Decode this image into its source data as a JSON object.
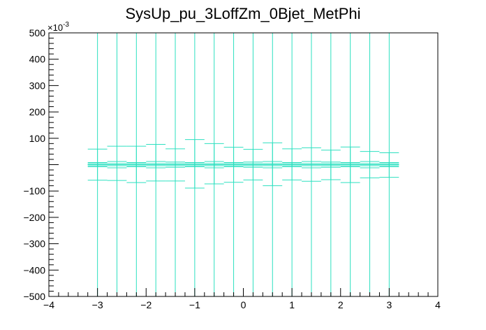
{
  "chart_data": {
    "type": "scatter",
    "title": "SysUp_pu_3LoffZm_0Bjet_MetPhi",
    "xlabel": "",
    "ylabel": "",
    "xlim": [
      -4,
      4
    ],
    "ylim": [
      -500,
      500
    ],
    "y_scale_label": "×10",
    "y_scale_exponent": "-3",
    "x_ticks": [
      -4,
      -3,
      -2,
      -1,
      0,
      1,
      2,
      3,
      4
    ],
    "x_tick_labels": [
      "−4",
      "−3",
      "−2",
      "−1",
      "0",
      "1",
      "2",
      "3",
      "4"
    ],
    "y_ticks": [
      -500,
      -400,
      -300,
      -200,
      -100,
      100,
      200,
      300,
      400,
      500
    ],
    "y_tick_labels": [
      "−500",
      "−400",
      "−300",
      "−200",
      "−100",
      "100",
      "200",
      "300",
      "400",
      "500"
    ],
    "grid": false,
    "legend": "none",
    "color": "#2de0c0",
    "series": [
      {
        "points": [
          {
            "x": -3.0,
            "xlo": -3.2,
            "xhi": -2.8,
            "y": 0,
            "ylo": -500,
            "yhi": 500
          },
          {
            "x": -2.6,
            "xlo": -2.8,
            "xhi": -2.4,
            "y": 0,
            "ylo": -500,
            "yhi": 500
          },
          {
            "x": -2.2,
            "xlo": -2.4,
            "xhi": -2.0,
            "y": 0,
            "ylo": -500,
            "yhi": 500
          },
          {
            "x": -1.8,
            "xlo": -2.0,
            "xhi": -1.6,
            "y": 0,
            "ylo": -500,
            "yhi": 500
          },
          {
            "x": -1.4,
            "xlo": -1.6,
            "xhi": -1.2,
            "y": 0,
            "ylo": -500,
            "yhi": 500
          },
          {
            "x": -1.0,
            "xlo": -1.2,
            "xhi": -0.8,
            "y": 0,
            "ylo": -500,
            "yhi": 500
          },
          {
            "x": -0.6,
            "xlo": -0.8,
            "xhi": -0.4,
            "y": 0,
            "ylo": -500,
            "yhi": 500
          },
          {
            "x": -0.2,
            "xlo": -0.4,
            "xhi": 0.0,
            "y": 0,
            "ylo": -500,
            "yhi": 500
          },
          {
            "x": 0.2,
            "xlo": 0.0,
            "xhi": 0.4,
            "y": 0,
            "ylo": -500,
            "yhi": 500
          },
          {
            "x": 0.6,
            "xlo": 0.4,
            "xhi": 0.8,
            "y": 0,
            "ylo": -500,
            "yhi": 500
          },
          {
            "x": 1.0,
            "xlo": 0.8,
            "xhi": 1.2,
            "y": 0,
            "ylo": -500,
            "yhi": 500
          },
          {
            "x": 1.4,
            "xlo": 1.2,
            "xhi": 1.6,
            "y": 0,
            "ylo": -500,
            "yhi": 500
          },
          {
            "x": 1.8,
            "xlo": 1.6,
            "xhi": 2.0,
            "y": 0,
            "ylo": -500,
            "yhi": 500
          },
          {
            "x": 2.2,
            "xlo": 2.0,
            "xhi": 2.4,
            "y": 0,
            "ylo": -500,
            "yhi": 500
          },
          {
            "x": 2.6,
            "xlo": 2.4,
            "xhi": 2.8,
            "y": 0,
            "ylo": -500,
            "yhi": 500
          },
          {
            "x": 3.0,
            "xlo": 2.8,
            "xhi": 3.2,
            "y": 0,
            "ylo": -500,
            "yhi": 500
          }
        ]
      },
      {
        "points": [
          {
            "xlo": -3.2,
            "xhi": -2.8,
            "y": 0,
            "ylo": -59,
            "yhi": 59
          },
          {
            "xlo": -2.8,
            "xhi": -2.4,
            "y": 0,
            "ylo": -60,
            "yhi": 70
          },
          {
            "xlo": -2.4,
            "xhi": -2.0,
            "y": 0,
            "ylo": -68,
            "yhi": 70
          },
          {
            "xlo": -2.0,
            "xhi": -1.6,
            "y": 0,
            "ylo": -62,
            "yhi": 77
          },
          {
            "xlo": -1.6,
            "xhi": -1.2,
            "y": 0,
            "ylo": -62,
            "yhi": 60
          },
          {
            "xlo": -1.2,
            "xhi": -0.8,
            "y": 0,
            "ylo": -89,
            "yhi": 95
          },
          {
            "xlo": -0.8,
            "xhi": -0.4,
            "y": 0,
            "ylo": -73,
            "yhi": 80
          },
          {
            "xlo": -0.4,
            "xhi": 0.0,
            "y": 0,
            "ylo": -67,
            "yhi": 66
          },
          {
            "xlo": 0.0,
            "xhi": 0.4,
            "y": 0,
            "ylo": -58,
            "yhi": 58
          },
          {
            "xlo": 0.4,
            "xhi": 0.8,
            "y": 0,
            "ylo": -80,
            "yhi": 83
          },
          {
            "xlo": 0.8,
            "xhi": 1.2,
            "y": 0,
            "ylo": -58,
            "yhi": 60
          },
          {
            "xlo": 1.2,
            "xhi": 1.6,
            "y": 0,
            "ylo": -63,
            "yhi": 64
          },
          {
            "xlo": 1.6,
            "xhi": 2.0,
            "y": 0,
            "ylo": -57,
            "yhi": 55
          },
          {
            "xlo": 2.0,
            "xhi": 2.4,
            "y": 0,
            "ylo": -68,
            "yhi": 67
          },
          {
            "xlo": 2.4,
            "xhi": 2.8,
            "y": 0,
            "ylo": -50,
            "yhi": 50
          },
          {
            "xlo": 2.8,
            "xhi": 3.2,
            "y": 0,
            "ylo": -48,
            "yhi": 45
          }
        ]
      },
      {
        "points": [
          {
            "xlo": -3.2,
            "xhi": -2.8,
            "y": 0,
            "ylo": -8,
            "yhi": 8
          },
          {
            "xlo": -2.8,
            "xhi": -2.4,
            "y": 0,
            "ylo": -12,
            "yhi": 12
          },
          {
            "xlo": -2.4,
            "xhi": -2.0,
            "y": 0,
            "ylo": -8,
            "yhi": 8
          },
          {
            "xlo": -2.0,
            "xhi": -1.6,
            "y": 0,
            "ylo": -12,
            "yhi": 12
          },
          {
            "xlo": -1.6,
            "xhi": -1.2,
            "y": 0,
            "ylo": -10,
            "yhi": 10
          },
          {
            "xlo": -1.2,
            "xhi": -0.8,
            "y": 0,
            "ylo": -8,
            "yhi": 8
          },
          {
            "xlo": -0.8,
            "xhi": -0.4,
            "y": 0,
            "ylo": -12,
            "yhi": 12
          },
          {
            "xlo": -0.4,
            "xhi": 0.0,
            "y": 0,
            "ylo": -8,
            "yhi": 8
          },
          {
            "xlo": 0.0,
            "xhi": 0.4,
            "y": 0,
            "ylo": -10,
            "yhi": 10
          },
          {
            "xlo": 0.4,
            "xhi": 0.8,
            "y": 0,
            "ylo": -12,
            "yhi": 12
          },
          {
            "xlo": 0.8,
            "xhi": 1.2,
            "y": 0,
            "ylo": -8,
            "yhi": 8
          },
          {
            "xlo": 1.2,
            "xhi": 1.6,
            "y": 0,
            "ylo": -12,
            "yhi": 12
          },
          {
            "xlo": 1.6,
            "xhi": 2.0,
            "y": 0,
            "ylo": -10,
            "yhi": 10
          },
          {
            "xlo": 2.0,
            "xhi": 2.4,
            "y": 0,
            "ylo": -8,
            "yhi": 8
          },
          {
            "xlo": 2.4,
            "xhi": 2.8,
            "y": 0,
            "ylo": -12,
            "yhi": 12
          },
          {
            "xlo": 2.8,
            "xhi": 3.2,
            "y": 0,
            "ylo": -8,
            "yhi": 8
          }
        ]
      },
      {
        "points": [
          {
            "xlo": -3.2,
            "xhi": -2.8,
            "y": 0,
            "ylo": -4,
            "yhi": 4
          },
          {
            "xlo": -2.8,
            "xhi": -2.4,
            "y": 0,
            "ylo": -4,
            "yhi": 4
          },
          {
            "xlo": -2.4,
            "xhi": -2.0,
            "y": 0,
            "ylo": -4,
            "yhi": 4
          },
          {
            "xlo": -2.0,
            "xhi": -1.6,
            "y": 0,
            "ylo": -4,
            "yhi": 4
          },
          {
            "xlo": -1.6,
            "xhi": -1.2,
            "y": 0,
            "ylo": -4,
            "yhi": 4
          },
          {
            "xlo": -1.2,
            "xhi": -0.8,
            "y": 0,
            "ylo": -4,
            "yhi": 4
          },
          {
            "xlo": -0.8,
            "xhi": -0.4,
            "y": 0,
            "ylo": -4,
            "yhi": 4
          },
          {
            "xlo": -0.4,
            "xhi": 0.0,
            "y": 0,
            "ylo": -4,
            "yhi": 4
          },
          {
            "xlo": 0.0,
            "xhi": 0.4,
            "y": 0,
            "ylo": -4,
            "yhi": 4
          },
          {
            "xlo": 0.4,
            "xhi": 0.8,
            "y": 0,
            "ylo": -4,
            "yhi": 4
          },
          {
            "xlo": 0.8,
            "xhi": 1.2,
            "y": 0,
            "ylo": -4,
            "yhi": 4
          },
          {
            "xlo": 1.2,
            "xhi": 1.6,
            "y": 0,
            "ylo": -4,
            "yhi": 4
          },
          {
            "xlo": 1.6,
            "xhi": 2.0,
            "y": 0,
            "ylo": -4,
            "yhi": 4
          },
          {
            "xlo": 2.0,
            "xhi": 2.4,
            "y": 0,
            "ylo": -4,
            "yhi": 4
          },
          {
            "xlo": 2.4,
            "xhi": 2.8,
            "y": 0,
            "ylo": -4,
            "yhi": 4
          },
          {
            "xlo": 2.8,
            "xhi": 3.2,
            "y": 0,
            "ylo": -4,
            "yhi": 4
          }
        ]
      }
    ]
  }
}
